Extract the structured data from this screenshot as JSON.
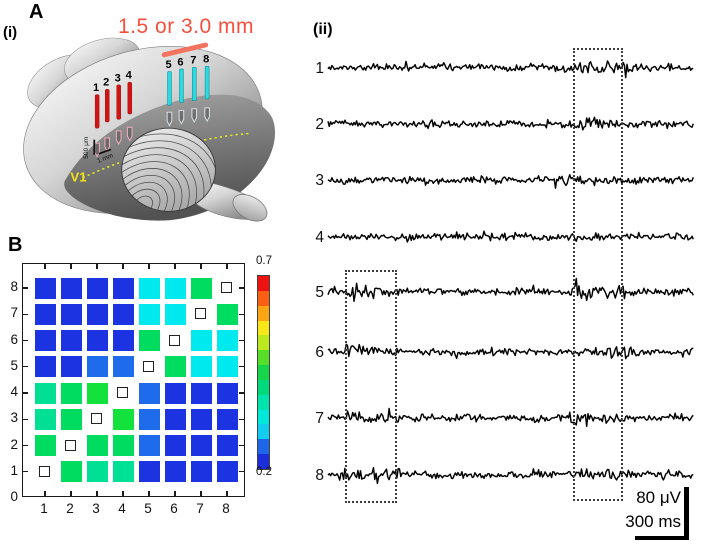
{
  "figure": {
    "panel_a": "A",
    "panel_a_i": "(i)",
    "panel_a_ii": "(ii)",
    "panel_b": "B"
  },
  "panelA": {
    "distance_label": "1.5 or 3.0 mm",
    "v1_label": "V1",
    "depth_scale_label": "500 μm",
    "spacing_scale_label": "1 mm",
    "red_electrode_labels": [
      "1",
      "2",
      "3",
      "4"
    ],
    "cyan_electrode_labels": [
      "5",
      "6",
      "7",
      "8"
    ],
    "colors": {
      "red_electrode": "#d51212",
      "cyan_electrode": "#2bd9de",
      "distance_text": "#f4503c",
      "bracket_line": "#f4735f",
      "v1_text": "#f2e414",
      "dashed_line": "#e6ea22"
    }
  },
  "chart_data": [
    {
      "type": "heatmap",
      "description": "Panel B: pairwise correlation matrix between electrodes 1-8; diagonal self-pairs shown as small open squares",
      "x_ticklabels": [
        "1",
        "2",
        "3",
        "4",
        "5",
        "6",
        "7",
        "8"
      ],
      "y_ticklabels": [
        "0",
        "1",
        "2",
        "3",
        "4",
        "5",
        "6",
        "7",
        "8"
      ],
      "colorbar": {
        "min_label": "0.2",
        "max_label": "0.7",
        "stops_top_to_bottom": [
          "#ee1310",
          "#fb5f13",
          "#fba414",
          "#f8e81a",
          "#bce81e",
          "#57de28",
          "#17d54b",
          "#00da7c",
          "#00e3ad",
          "#00e8da",
          "#13cdf1",
          "#1e66e8",
          "#1b2edc"
        ]
      },
      "palette": {
        "B": {
          "hex": "#1c33e2",
          "value": 0.22
        },
        "L": {
          "hex": "#1e6ceb",
          "value": 0.27
        },
        "C": {
          "hex": "#00e9ef",
          "value": 0.33
        },
        "S": {
          "hex": "#00e095",
          "value": 0.37
        },
        "G": {
          "hex": "#00dc5f",
          "value": 0.4
        },
        "R": {
          "hex": "#12e23b",
          "value": 0.43
        },
        "D": {
          "hex": null,
          "value": null,
          "note": "diagonal open-square marker"
        }
      },
      "matrix_rows_top_to_bottom": [
        {
          "y": 8,
          "codes": [
            "B",
            "B",
            "B",
            "B",
            "C",
            "C",
            "G",
            "D"
          ]
        },
        {
          "y": 7,
          "codes": [
            "B",
            "B",
            "B",
            "B",
            "C",
            "C",
            "D",
            "G"
          ]
        },
        {
          "y": 6,
          "codes": [
            "B",
            "B",
            "B",
            "B",
            "G",
            "D",
            "C",
            "C"
          ]
        },
        {
          "y": 5,
          "codes": [
            "B",
            "B",
            "L",
            "L",
            "D",
            "G",
            "C",
            "C"
          ]
        },
        {
          "y": 4,
          "codes": [
            "S",
            "G",
            "R",
            "D",
            "L",
            "B",
            "B",
            "B"
          ]
        },
        {
          "y": 3,
          "codes": [
            "S",
            "G",
            "D",
            "R",
            "L",
            "B",
            "B",
            "B"
          ]
        },
        {
          "y": 2,
          "codes": [
            "G",
            "D",
            "G",
            "G",
            "L",
            "B",
            "B",
            "B"
          ]
        },
        {
          "y": 1,
          "codes": [
            "D",
            "G",
            "S",
            "S",
            "B",
            "B",
            "B",
            "B"
          ]
        }
      ]
    },
    {
      "type": "line",
      "description": "Panel A(ii): raw voltage traces of electrodes 1-8; dotted boxes mark epochs of coincident activity",
      "trace_labels": [
        "1",
        "2",
        "3",
        "4",
        "5",
        "6",
        "7",
        "8"
      ],
      "scale_bar": {
        "voltage": "80 μV",
        "time": "300 ms"
      },
      "seeds": [
        11,
        22,
        33,
        44,
        55,
        66,
        77,
        88
      ],
      "bursts": [
        [
          [
            0.66,
            0.82,
            2.2
          ]
        ],
        [
          [
            0.66,
            0.8,
            1.5
          ]
        ],
        [
          [
            0.62,
            0.8,
            1.35
          ]
        ],
        [
          [
            0.6,
            0.78,
            1.2
          ]
        ],
        [
          [
            0.04,
            0.19,
            2.3
          ],
          [
            0.66,
            0.81,
            2.0
          ]
        ],
        [
          [
            0.04,
            0.17,
            1.8
          ],
          [
            0.7,
            0.84,
            1.9
          ]
        ],
        [
          [
            0.05,
            0.19,
            1.6
          ],
          [
            0.66,
            0.81,
            2.0
          ]
        ],
        [
          [
            0.03,
            0.2,
            2.0
          ],
          [
            0.64,
            0.84,
            1.8
          ]
        ]
      ]
    }
  ]
}
